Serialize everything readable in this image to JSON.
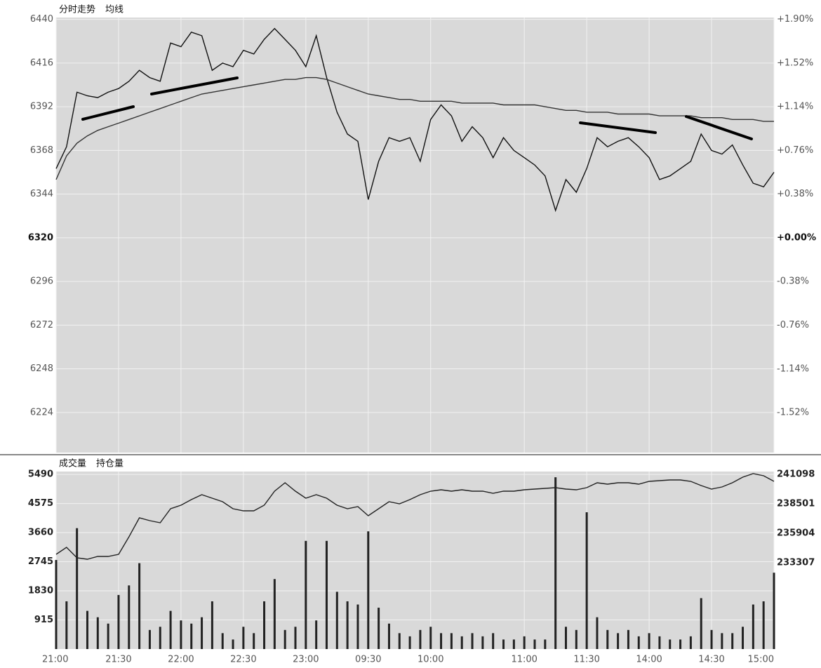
{
  "chart_data": [
    {
      "type": "line",
      "grid": true,
      "x": [
        0,
        5,
        10,
        15,
        20,
        25,
        30,
        35,
        40,
        45,
        50,
        55,
        60,
        65,
        70,
        75,
        80,
        85,
        90,
        95,
        100,
        105,
        110,
        115,
        120,
        125,
        130,
        135,
        140,
        145,
        150,
        155,
        160,
        165,
        170,
        175,
        180,
        185,
        190,
        195,
        200,
        205,
        210,
        215,
        220,
        225,
        230,
        235,
        240,
        245,
        250,
        255,
        260,
        265,
        270,
        275,
        280,
        285,
        290,
        295,
        300,
        305,
        310,
        315,
        320,
        325,
        330,
        335,
        340,
        345
      ],
      "xlim": [
        0,
        345
      ],
      "ylim": [
        6202,
        6441
      ],
      "yticks": [
        6440,
        6416,
        6392,
        6368,
        6344,
        6320,
        6296,
        6272,
        6248,
        6224
      ],
      "y2lim": [
        -1.867,
        1.915
      ],
      "y2ticks": [
        {
          "value": 1.9,
          "label": "+1.90%"
        },
        {
          "value": 1.52,
          "label": "+1.52%"
        },
        {
          "value": 1.14,
          "label": "+1.14%"
        },
        {
          "value": 0.76,
          "label": "+0.76%"
        },
        {
          "value": 0.38,
          "label": "+0.38%"
        },
        {
          "value": 0,
          "label": "+0.00%"
        },
        {
          "value": -0.38,
          "label": "-0.38%"
        },
        {
          "value": -0.76,
          "label": "-0.76%"
        },
        {
          "value": -1.14,
          "label": "-1.14%"
        },
        {
          "value": -1.52,
          "label": "-1.52%"
        }
      ],
      "series": [
        {
          "name": "分时走势",
          "color": "#111111",
          "values": [
            6358,
            6370,
            6400,
            6398,
            6397,
            6400,
            6402,
            6406,
            6412,
            6408,
            6406,
            6427,
            6425,
            6433,
            6431,
            6412,
            6416,
            6414,
            6423,
            6421,
            6429,
            6435,
            6429,
            6423,
            6414,
            6431,
            6408,
            6389,
            6377,
            6373,
            6341,
            6362,
            6375,
            6373,
            6375,
            6362,
            6385,
            6393,
            6387,
            6373,
            6381,
            6375,
            6364,
            6375,
            6368,
            6364,
            6360,
            6354,
            6335,
            6352,
            6345,
            6358,
            6375,
            6370,
            6373,
            6375,
            6370,
            6364,
            6352,
            6354,
            6358,
            6362,
            6377,
            6368,
            6366,
            6371,
            6360,
            6350,
            6348,
            6356
          ]
        },
        {
          "name": "均线",
          "color": "#333333",
          "values": [
            6352,
            6365,
            6372,
            6376,
            6379,
            6381,
            6383,
            6385,
            6387,
            6389,
            6391,
            6393,
            6395,
            6397,
            6399,
            6400,
            6401,
            6402,
            6403,
            6404,
            6405,
            6406,
            6407,
            6407,
            6408,
            6408,
            6407,
            6405,
            6403,
            6401,
            6399,
            6398,
            6397,
            6396,
            6396,
            6395,
            6395,
            6395,
            6395,
            6394,
            6394,
            6394,
            6394,
            6393,
            6393,
            6393,
            6393,
            6392,
            6391,
            6390,
            6390,
            6389,
            6389,
            6389,
            6388,
            6388,
            6388,
            6388,
            6387,
            6387,
            6387,
            6387,
            6386,
            6386,
            6386,
            6385,
            6385,
            6385,
            6384,
            6384
          ]
        }
      ]
    },
    {
      "type": "bar",
      "grid": true,
      "x": [
        0,
        5,
        10,
        15,
        20,
        25,
        30,
        35,
        40,
        45,
        50,
        55,
        60,
        65,
        70,
        75,
        80,
        85,
        90,
        95,
        100,
        105,
        110,
        115,
        120,
        125,
        130,
        135,
        140,
        145,
        150,
        155,
        160,
        165,
        170,
        175,
        180,
        185,
        190,
        195,
        200,
        205,
        210,
        215,
        220,
        225,
        230,
        235,
        240,
        245,
        250,
        255,
        260,
        265,
        270,
        275,
        280,
        285,
        290,
        295,
        300,
        305,
        310,
        315,
        320,
        325,
        330,
        335,
        340,
        345
      ],
      "xlim": [
        0,
        345
      ],
      "xticks": [
        {
          "value": 0,
          "label": "21:00"
        },
        {
          "value": 30,
          "label": "21:30"
        },
        {
          "value": 60,
          "label": "22:00"
        },
        {
          "value": 90,
          "label": "22:30"
        },
        {
          "value": 120,
          "label": "23:00"
        },
        {
          "value": 150,
          "label": "09:30"
        },
        {
          "value": 180,
          "label": "10:00"
        },
        {
          "value": 225,
          "label": "11:00"
        },
        {
          "value": 255,
          "label": "11:30"
        },
        {
          "value": 285,
          "label": "14:00"
        },
        {
          "value": 315,
          "label": "14:30"
        },
        {
          "value": 345,
          "label": "15:00"
        }
      ],
      "ylim": [
        0,
        5580
      ],
      "yticks": [
        5490,
        4575,
        3660,
        2745,
        1830,
        915
      ],
      "y2lim": [
        225702,
        241345
      ],
      "y2ticks": [
        241098,
        238501,
        235904,
        233307
      ],
      "series": [
        {
          "name": "成交量",
          "color": "#222222",
          "values": [
            2800,
            1500,
            3800,
            1200,
            1000,
            800,
            1700,
            2000,
            2700,
            600,
            700,
            1200,
            900,
            800,
            1000,
            1500,
            500,
            300,
            700,
            500,
            1500,
            2200,
            600,
            700,
            3400,
            900,
            3400,
            1800,
            1500,
            1400,
            3700,
            1300,
            800,
            500,
            400,
            600,
            700,
            500,
            500,
            400,
            500,
            400,
            500,
            300,
            300,
            400,
            300,
            300,
            5400,
            700,
            600,
            4300,
            1000,
            600,
            500,
            600,
            400,
            500,
            400,
            300,
            300,
            400,
            1600,
            600,
            500,
            500,
            700,
            1400,
            1500,
            2400
          ]
        },
        {
          "name": "持仓量",
          "color": "#222222",
          "type": "line",
          "axis": "y2",
          "values": [
            234049,
            234667,
            233740,
            233616,
            233863,
            233863,
            234049,
            235595,
            237264,
            237017,
            236831,
            238068,
            238377,
            238872,
            239305,
            238996,
            238686,
            238068,
            237882,
            237882,
            238377,
            239614,
            240356,
            239614,
            238996,
            239305,
            238996,
            238377,
            238068,
            238253,
            237449,
            238068,
            238686,
            238501,
            238872,
            239305,
            239614,
            239737,
            239614,
            239737,
            239614,
            239614,
            239428,
            239614,
            239614,
            239737,
            239799,
            239861,
            239923,
            239799,
            239737,
            239923,
            240356,
            240232,
            240356,
            240356,
            240232,
            240479,
            240541,
            240603,
            240603,
            240479,
            240108,
            239799,
            239985,
            240356,
            240850,
            241160,
            240974,
            240479
          ]
        }
      ]
    }
  ]
}
